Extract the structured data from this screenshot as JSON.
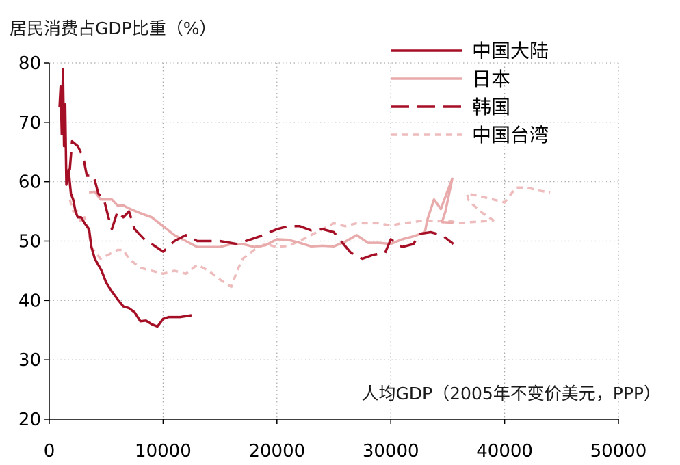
{
  "chart_data": {
    "type": "line",
    "ylabel": "居民消费占GDP比重（%）",
    "xlabel": "人均GDP（2005年不变价美元，PPP）",
    "xlim": [
      0,
      50000
    ],
    "ylim": [
      20,
      80
    ],
    "x_ticks": [
      0,
      10000,
      20000,
      30000,
      40000,
      50000
    ],
    "y_ticks": [
      20,
      30,
      40,
      50,
      60,
      70,
      80
    ],
    "x_tick_labels": [
      "0",
      "10000",
      "20000",
      "30000",
      "40000",
      "50000"
    ],
    "y_tick_labels": [
      "20",
      "30",
      "40",
      "50",
      "60",
      "70",
      "80"
    ],
    "grid": true,
    "legend_position": "top-right",
    "series": [
      {
        "name": "中国大陆",
        "color": "#a50f26",
        "dash": "solid",
        "points": [
          [
            900,
            72.5
          ],
          [
            1000,
            76
          ],
          [
            1100,
            68
          ],
          [
            1200,
            79
          ],
          [
            1300,
            66
          ],
          [
            1400,
            73
          ],
          [
            1500,
            59.5
          ],
          [
            1700,
            62
          ],
          [
            1900,
            58
          ],
          [
            2100,
            57
          ],
          [
            2300,
            55
          ],
          [
            2500,
            54
          ],
          [
            2800,
            54
          ],
          [
            3100,
            53
          ],
          [
            3500,
            52
          ],
          [
            3700,
            49
          ],
          [
            4000,
            47
          ],
          [
            4300,
            46
          ],
          [
            4600,
            45
          ],
          [
            5000,
            43
          ],
          [
            5500,
            41.5
          ],
          [
            6000,
            40.2
          ],
          [
            6500,
            39
          ],
          [
            7000,
            38.7
          ],
          [
            7500,
            38
          ],
          [
            8000,
            36.5
          ],
          [
            8500,
            36.6
          ],
          [
            9000,
            36
          ],
          [
            9500,
            35.6
          ],
          [
            10000,
            36.9
          ],
          [
            10500,
            37.2
          ],
          [
            11500,
            37.2
          ],
          [
            12500,
            37.5
          ]
        ]
      },
      {
        "name": "日本",
        "color": "#e8aaaa",
        "dash": "solid",
        "points": [
          [
            3500,
            58.2
          ],
          [
            4000,
            58.3
          ],
          [
            4500,
            57
          ],
          [
            5500,
            57
          ],
          [
            6000,
            56
          ],
          [
            6500,
            56
          ],
          [
            7000,
            55.5
          ],
          [
            8000,
            54.7
          ],
          [
            9000,
            54
          ],
          [
            10000,
            52.5
          ],
          [
            11000,
            51
          ],
          [
            12000,
            50
          ],
          [
            13000,
            49
          ],
          [
            14000,
            49
          ],
          [
            15000,
            49
          ],
          [
            16000,
            49.5
          ],
          [
            17000,
            49.5
          ],
          [
            18000,
            49
          ],
          [
            19000,
            49.3
          ],
          [
            20000,
            50.3
          ],
          [
            21000,
            50.2
          ],
          [
            22000,
            49.7
          ],
          [
            23000,
            49.1
          ],
          [
            24000,
            49.2
          ],
          [
            25000,
            49.1
          ],
          [
            26000,
            49.9
          ],
          [
            27000,
            51
          ],
          [
            28000,
            49.7
          ],
          [
            29000,
            49.7
          ],
          [
            30000,
            49.5
          ],
          [
            31000,
            50.3
          ],
          [
            32000,
            50.8
          ],
          [
            33000,
            51.5
          ],
          [
            33200,
            53.5
          ],
          [
            33800,
            57
          ],
          [
            34400,
            55.4
          ],
          [
            35000,
            58.5
          ],
          [
            35400,
            60.5
          ],
          [
            34800,
            55
          ],
          [
            34500,
            53.2
          ],
          [
            35500,
            53.1
          ]
        ]
      },
      {
        "name": "韩国",
        "color": "#a50f26",
        "dash": "long",
        "points": [
          [
            1800,
            62
          ],
          [
            2000,
            66.8
          ],
          [
            2500,
            66
          ],
          [
            3000,
            64
          ],
          [
            3300,
            61
          ],
          [
            3900,
            61
          ],
          [
            4300,
            58
          ],
          [
            4800,
            57
          ],
          [
            5200,
            54
          ],
          [
            5500,
            52
          ],
          [
            6000,
            55
          ],
          [
            6500,
            54
          ],
          [
            7000,
            55
          ],
          [
            7500,
            52
          ],
          [
            8000,
            51
          ],
          [
            8500,
            50
          ],
          [
            9000,
            49.5
          ],
          [
            10000,
            48.2
          ],
          [
            11000,
            50
          ],
          [
            12000,
            51
          ],
          [
            13000,
            50
          ],
          [
            14000,
            50
          ],
          [
            15000,
            50
          ],
          [
            16500,
            49.5
          ],
          [
            18500,
            50.8
          ],
          [
            20000,
            52
          ],
          [
            21000,
            52.5
          ],
          [
            22000,
            52.5
          ],
          [
            23000,
            51.8
          ],
          [
            24000,
            52
          ],
          [
            25000,
            51.5
          ],
          [
            25500,
            50.3
          ],
          [
            26500,
            48
          ],
          [
            27500,
            47
          ],
          [
            28500,
            47.7
          ],
          [
            29500,
            48
          ],
          [
            30000,
            50.3
          ],
          [
            31000,
            49
          ],
          [
            32000,
            49.5
          ],
          [
            32500,
            51.2
          ],
          [
            33500,
            51.5
          ],
          [
            34500,
            51
          ],
          [
            35500,
            49.5
          ]
        ]
      },
      {
        "name": "中国台湾",
        "color": "#eebcbc",
        "dash": "short",
        "points": [
          [
            1800,
            57
          ],
          [
            2100,
            55
          ],
          [
            2500,
            55
          ],
          [
            2800,
            53
          ],
          [
            3100,
            54
          ],
          [
            3400,
            52
          ],
          [
            3700,
            49
          ],
          [
            4500,
            47
          ],
          [
            5500,
            48
          ],
          [
            6000,
            48.5
          ],
          [
            6500,
            48.5
          ],
          [
            7000,
            47
          ],
          [
            8000,
            45.5
          ],
          [
            9000,
            45
          ],
          [
            10000,
            44.5
          ],
          [
            11000,
            45
          ],
          [
            12000,
            44.5
          ],
          [
            13000,
            46
          ],
          [
            14000,
            45
          ],
          [
            15000,
            43.5
          ],
          [
            16000,
            42.3
          ],
          [
            16500,
            45
          ],
          [
            17000,
            47
          ],
          [
            18000,
            48.5
          ],
          [
            19000,
            49.5
          ],
          [
            20000,
            49
          ],
          [
            21000,
            49.2
          ],
          [
            22000,
            50
          ],
          [
            23000,
            51
          ],
          [
            24000,
            52
          ],
          [
            25000,
            53
          ],
          [
            26000,
            52.5
          ],
          [
            27000,
            53
          ],
          [
            28000,
            53
          ],
          [
            29000,
            53
          ],
          [
            30000,
            52.6
          ],
          [
            31000,
            53
          ],
          [
            32000,
            53.2
          ],
          [
            33000,
            53.5
          ],
          [
            34000,
            53.3
          ],
          [
            35000,
            53.5
          ],
          [
            36000,
            53
          ],
          [
            37000,
            53.2
          ],
          [
            38000,
            53.3
          ],
          [
            39000,
            53.5
          ],
          [
            38000,
            54.8
          ],
          [
            37000,
            56.5
          ],
          [
            36800,
            57
          ],
          [
            36700,
            58
          ],
          [
            38000,
            57.5
          ],
          [
            39000,
            57
          ],
          [
            40000,
            56.5
          ],
          [
            41000,
            59
          ],
          [
            42000,
            59
          ],
          [
            43000,
            58.5
          ],
          [
            44000,
            58.2
          ]
        ]
      }
    ]
  }
}
